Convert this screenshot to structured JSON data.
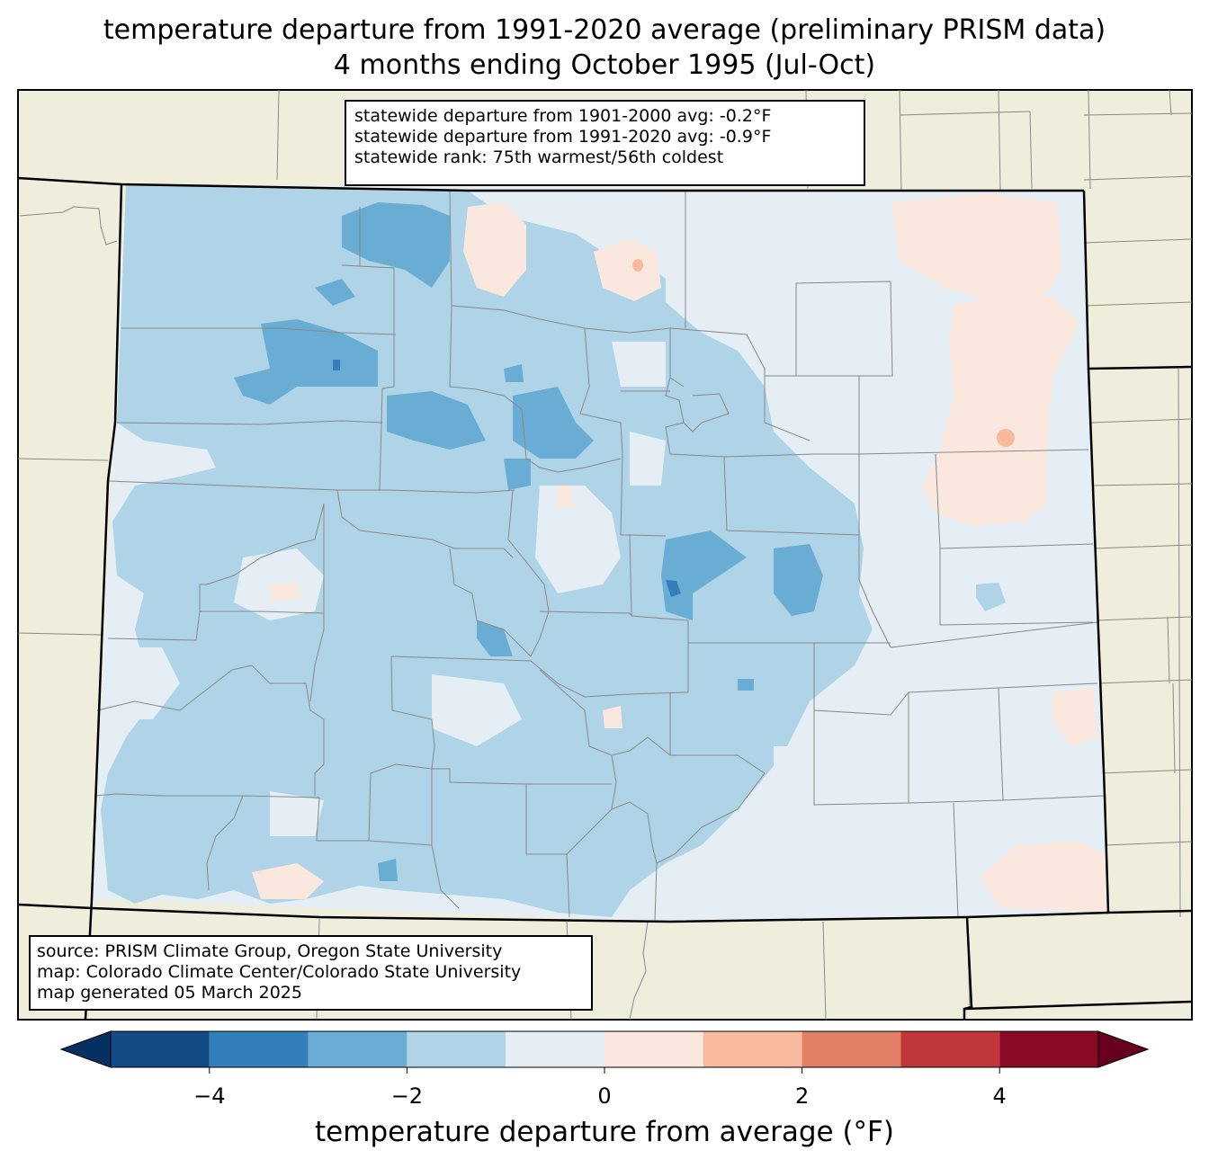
{
  "title": {
    "line1": "temperature departure from 1991-2020 average (preliminary PRISM data)",
    "line2": "4 months ending October 1995 (Jul-Oct)"
  },
  "stats_box": {
    "line1": "statewide departure from 1901-2000 avg: -0.2°F",
    "line2": "statewide departure from 1991-2020 avg: -0.9°F",
    "line3": "statewide rank: 75th warmest/56th coldest"
  },
  "source_box": {
    "line1": "source: PRISM Climate Group, Oregon State University",
    "line2": "map: Colorado Climate Center/Colorado State University",
    "line3": "map generated 05 March 2025"
  },
  "colorbar": {
    "label": "temperature departure from average (°F)",
    "ticks": [
      "−4",
      "−2",
      "0",
      "2",
      "4"
    ],
    "bins": [
      {
        "from": -5,
        "to": -4,
        "color": "#134b87"
      },
      {
        "from": -4,
        "to": -3,
        "color": "#327fba"
      },
      {
        "from": -3,
        "to": -2,
        "color": "#6aadd4"
      },
      {
        "from": -2,
        "to": -1,
        "color": "#b0d4e7"
      },
      {
        "from": -1,
        "to": 0,
        "color": "#e4eef4"
      },
      {
        "from": 0,
        "to": 1,
        "color": "#fae8de"
      },
      {
        "from": 1,
        "to": 2,
        "color": "#f8b99c"
      },
      {
        "from": 2,
        "to": 3,
        "color": "#e07e66"
      },
      {
        "from": 3,
        "to": 4,
        "color": "#c13739"
      },
      {
        "from": 4,
        "to": 5,
        "color": "#890b23"
      }
    ],
    "under_color": "#053061",
    "over_color": "#67001f"
  },
  "colors": {
    "land": "#efeedc",
    "state_border": "#000000",
    "county_border": "#888888"
  }
}
